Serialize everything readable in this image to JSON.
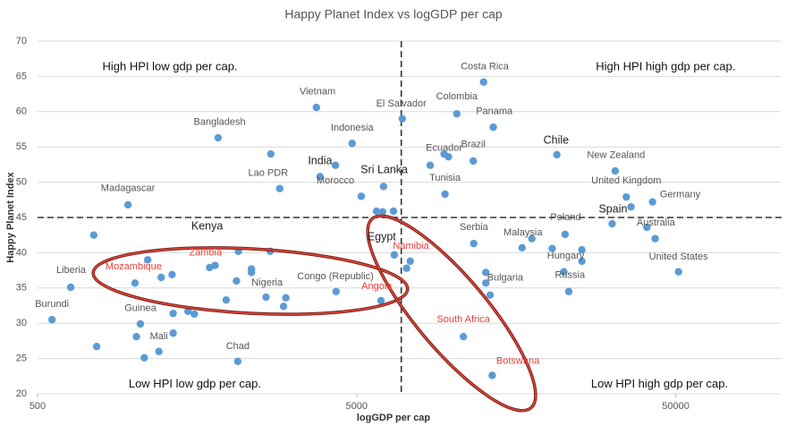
{
  "chart_data": {
    "type": "scatter",
    "title": "Happy Planet Index vs logGDP per cap",
    "xlabel": "logGDP per cap",
    "ylabel": "Happy Planet Index",
    "xscale": "log",
    "xlim": [
      500,
      100000
    ],
    "xticks": [
      500,
      5000,
      50000
    ],
    "ylim": [
      20,
      70
    ],
    "yticks": [
      20,
      25,
      30,
      35,
      40,
      45,
      50,
      55,
      60,
      65,
      70
    ],
    "grid": true,
    "reference_lines": {
      "x": 6900,
      "y": 45
    },
    "series": [
      {
        "color": "#5b9bd5",
        "x": [
          12500,
          3740,
          6950,
          10300,
          13400,
          1840,
          4840,
          21200,
          9400,
          11600,
          9700,
          8500,
          4290,
          32300,
          2870,
          6070,
          3840,
          5170,
          9460,
          35000,
          42300,
          36200,
          960,
          5770,
          6030,
          6520,
          2690,
          31600,
          40600,
          43100,
          22500,
          750,
          2130,
          2680,
          6560,
          7360,
          7170,
          11640,
          17700,
          16500,
          20500,
          25400,
          25400,
          22300,
          51000,
          23100,
          13100,
          12700,
          12700,
          5960,
          4310,
          10800,
          13300,
          2120,
          1330,
          1050,
          1020,
          1080,
          766,
          1200,
          555,
          635,
          1010,
          1107,
          1730,
          1800,
          2100,
          2340,
          2340,
          2600,
          3000,
          2950,
          1950,
          1220,
          1320,
          1330,
          1480,
          1550
        ],
        "y": [
          64.2,
          60.6,
          59,
          59.7,
          57.8,
          56.3,
          55.5,
          53.9,
          54,
          53,
          53.6,
          52.4,
          52.4,
          51.6,
          49.1,
          49.4,
          50.8,
          48,
          48.3,
          47.9,
          47.2,
          46.5,
          46.8,
          45.9,
          45.8,
          45.9,
          54,
          44.1,
          43.6,
          42,
          42.6,
          42.5,
          40.2,
          40.2,
          39.7,
          38.8,
          37.8,
          41.3,
          42,
          40.7,
          40.6,
          40.4,
          38.8,
          37.3,
          37.3,
          34.5,
          34,
          35.7,
          37.2,
          33.2,
          34.5,
          28.1,
          22.6,
          24.6,
          28.6,
          29.9,
          28.1,
          25.1,
          26.7,
          26,
          30.5,
          35.1,
          35.7,
          39,
          37.9,
          38.2,
          36,
          37.7,
          37.2,
          33.7,
          33.6,
          32.4,
          33.3,
          36.5,
          36.9,
          31.4,
          31.7,
          31.3
        ]
      }
    ],
    "annotations": [
      {
        "text": "High HPI low gdp per cap.",
        "x": 1300,
        "y": 66.3,
        "color": "#111"
      },
      {
        "text": "High HPI high gdp per cap.",
        "x": 46500,
        "y": 66.3,
        "color": "#111"
      },
      {
        "text": "Low HPI low gdp per cap.",
        "x": 1556,
        "y": 21.3,
        "color": "#111"
      },
      {
        "text": "Low HPI high gdp per cap.",
        "x": 44500,
        "y": 21.3,
        "color": "#111"
      },
      {
        "text": "Costa Rica",
        "x": 12600,
        "y": 66.4,
        "color": "#555"
      },
      {
        "text": "Vietnam",
        "x": 3770,
        "y": 62.8,
        "color": "#555"
      },
      {
        "text": "El Salvador",
        "x": 6900,
        "y": 61.1,
        "color": "#555"
      },
      {
        "text": "Colombia",
        "x": 10300,
        "y": 62.1,
        "color": "#555"
      },
      {
        "text": "Panama",
        "x": 13500,
        "y": 60,
        "color": "#555"
      },
      {
        "text": "Bangladesh",
        "x": 1860,
        "y": 58.5,
        "color": "#555"
      },
      {
        "text": "Indonesia",
        "x": 4840,
        "y": 57.7,
        "color": "#555"
      },
      {
        "text": "Chile",
        "x": 21100,
        "y": 55.9,
        "color": "#222"
      },
      {
        "text": "Ecuador",
        "x": 9400,
        "y": 54.8,
        "color": "#555"
      },
      {
        "text": "Brazil",
        "x": 11600,
        "y": 55.3,
        "color": "#555"
      },
      {
        "text": "India",
        "x": 3840,
        "y": 53,
        "color": "#222"
      },
      {
        "text": "New Zealand",
        "x": 32500,
        "y": 53.8,
        "color": "#555"
      },
      {
        "text": "Lao PDR",
        "x": 2640,
        "y": 51.3,
        "color": "#555"
      },
      {
        "text": "Sri Lanka",
        "x": 6100,
        "y": 51.7,
        "color": "#222"
      },
      {
        "text": "Morocco",
        "x": 4290,
        "y": 50.2,
        "color": "#555"
      },
      {
        "text": "Tunisia",
        "x": 9460,
        "y": 50.6,
        "color": "#555"
      },
      {
        "text": "United Kingdom",
        "x": 35000,
        "y": 50.2,
        "color": "#555"
      },
      {
        "text": "Germany",
        "x": 51600,
        "y": 48.2,
        "color": "#555"
      },
      {
        "text": "Spain",
        "x": 31800,
        "y": 46.1,
        "color": "#222"
      },
      {
        "text": "Madagascar",
        "x": 960,
        "y": 49.1,
        "color": "#555"
      },
      {
        "text": "Kenya",
        "x": 1700,
        "y": 43.7,
        "color": "#222"
      },
      {
        "text": "Poland",
        "x": 22600,
        "y": 45,
        "color": "#555"
      },
      {
        "text": "Australia",
        "x": 43300,
        "y": 44.2,
        "color": "#555"
      },
      {
        "text": "Egypt",
        "x": 5990,
        "y": 42.2,
        "color": "#222"
      },
      {
        "text": "Serbia",
        "x": 11650,
        "y": 43.6,
        "color": "#555"
      },
      {
        "text": "Malaysia",
        "x": 16600,
        "y": 42.8,
        "color": "#555"
      },
      {
        "text": "Namibia",
        "x": 7400,
        "y": 40.9,
        "color": "#e8403a"
      },
      {
        "text": "Zambia",
        "x": 1680,
        "y": 40,
        "color": "#e8403a"
      },
      {
        "text": "Mozambique",
        "x": 1000,
        "y": 38,
        "color": "#e8403a"
      },
      {
        "text": "Hungary",
        "x": 22600,
        "y": 39.5,
        "color": "#555"
      },
      {
        "text": "United States",
        "x": 51000,
        "y": 39.4,
        "color": "#555"
      },
      {
        "text": "Liberia",
        "x": 637,
        "y": 37.5,
        "color": "#555"
      },
      {
        "text": "Nigeria",
        "x": 2620,
        "y": 35.7,
        "color": "#555"
      },
      {
        "text": "Congo (Republic)",
        "x": 4290,
        "y": 36.6,
        "color": "#555"
      },
      {
        "text": "Russia",
        "x": 23300,
        "y": 36.8,
        "color": "#555"
      },
      {
        "text": "Bulgaria",
        "x": 14600,
        "y": 36.4,
        "color": "#555"
      },
      {
        "text": "Angola",
        "x": 5780,
        "y": 35.2,
        "color": "#e8403a"
      },
      {
        "text": "Burundi",
        "x": 555,
        "y": 32.7,
        "color": "#555"
      },
      {
        "text": "Guinea",
        "x": 1050,
        "y": 32.1,
        "color": "#555"
      },
      {
        "text": "South Africa",
        "x": 10800,
        "y": 30.5,
        "color": "#e8403a"
      },
      {
        "text": "Mali",
        "x": 1200,
        "y": 28.1,
        "color": "#555"
      },
      {
        "text": "Chad",
        "x": 2120,
        "y": 26.7,
        "color": "#555"
      },
      {
        "text": "Botswana",
        "x": 16000,
        "y": 24.6,
        "color": "#e8403a"
      }
    ]
  }
}
